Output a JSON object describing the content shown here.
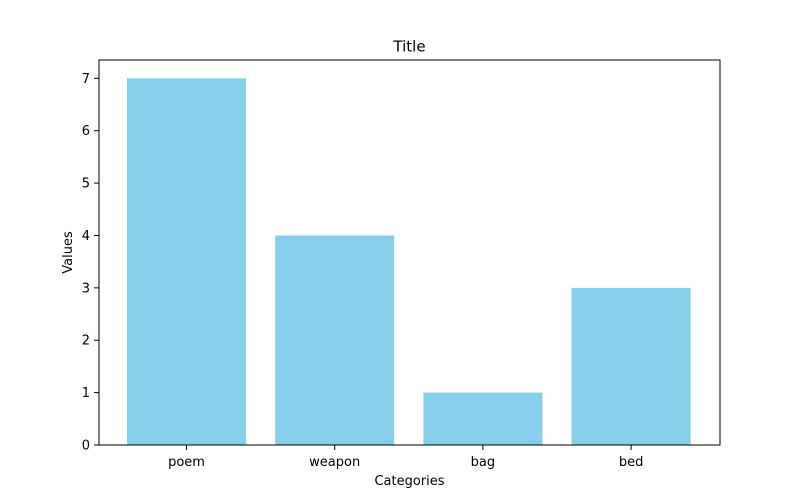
{
  "chart_data": {
    "type": "bar",
    "title": "Title",
    "xlabel": "Categories",
    "ylabel": "Values",
    "categories": [
      "poem",
      "weapon",
      "bag",
      "bed"
    ],
    "values": [
      7,
      4,
      1,
      3
    ],
    "ylim": [
      0,
      7.35
    ],
    "yticks": [
      "0",
      "1",
      "2",
      "3",
      "4",
      "5",
      "6",
      "7"
    ],
    "grid": false,
    "bar_color": "#87ceeb",
    "axis_color": "#000000"
  }
}
